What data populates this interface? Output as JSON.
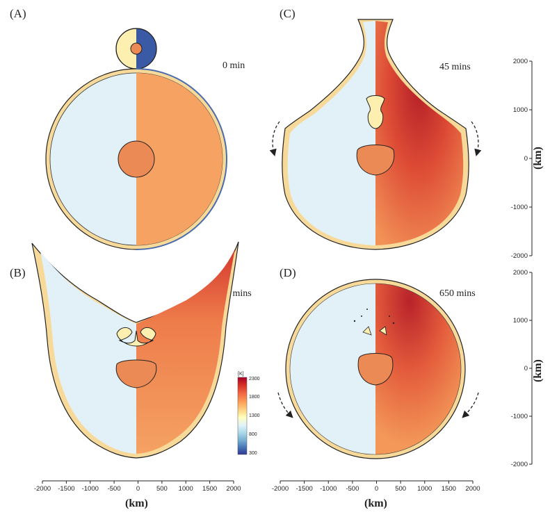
{
  "panels": [
    {
      "label": "(A)",
      "time": "0 min"
    },
    {
      "label": "(B)",
      "time": "10 mins"
    },
    {
      "label": "(C)",
      "time": "45 mins"
    },
    {
      "label": "(D)",
      "time": "650 mins"
    }
  ],
  "x_axis": {
    "title": "(km)",
    "ticks": [
      "-2000",
      "-1500",
      "-1000",
      "-500",
      "0",
      "500",
      "1000",
      "1500",
      "2000"
    ]
  },
  "y_axis": {
    "title": "(km)",
    "ticks": [
      "2000",
      "1000",
      "0",
      "-1000",
      "-2000"
    ]
  },
  "colorbar": {
    "unit": "[K]",
    "ticks": [
      "2300",
      "1800",
      "1300",
      "800",
      "300"
    ],
    "colors": [
      "#a50026",
      "#d73027",
      "#f46d43",
      "#fdae61",
      "#fee090",
      "#ffffbf",
      "#e0f3f8",
      "#abd9e9",
      "#74add1",
      "#4575b4",
      "#313695"
    ]
  },
  "colors": {
    "mantle_left": "#e2f1f8",
    "mantle_right": "#f5a263",
    "core": "#ec8a55",
    "crust": "#f7da9a",
    "hot": "#c2262a",
    "impactor_left": "#fcefb0",
    "impactor_right": "#3b5aa5"
  }
}
